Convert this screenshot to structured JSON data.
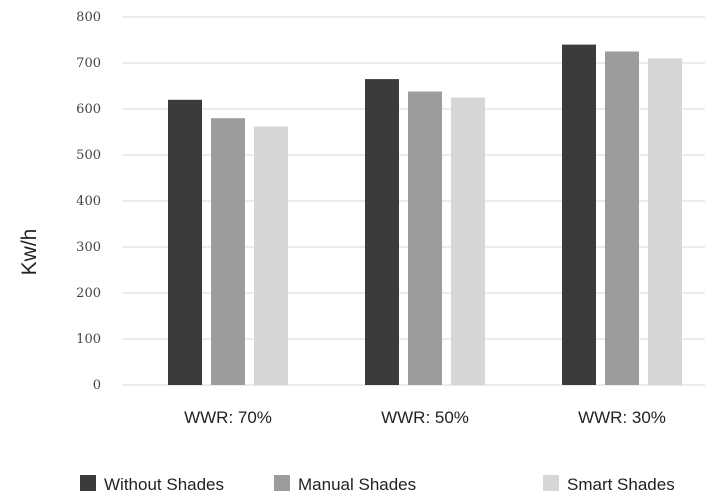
{
  "chart_data": {
    "type": "bar",
    "title": "",
    "xlabel": "",
    "ylabel": "Kw/h",
    "ylim": [
      0,
      800
    ],
    "yticks": [
      0,
      100,
      200,
      300,
      400,
      500,
      600,
      700,
      800
    ],
    "grid": true,
    "legend_position": "bottom",
    "categories": [
      "WWR: 70%",
      "WWR: 50%",
      "WWR: 30%"
    ],
    "series": [
      {
        "name": "Without Shades",
        "color": "#3b3b3b",
        "values": [
          620,
          665,
          740
        ]
      },
      {
        "name": "Manual Shades",
        "color": "#9c9c9c",
        "values": [
          580,
          638,
          725
        ]
      },
      {
        "name": "Smart Shades",
        "color": "#d6d6d6",
        "values": [
          562,
          625,
          710
        ]
      }
    ]
  }
}
